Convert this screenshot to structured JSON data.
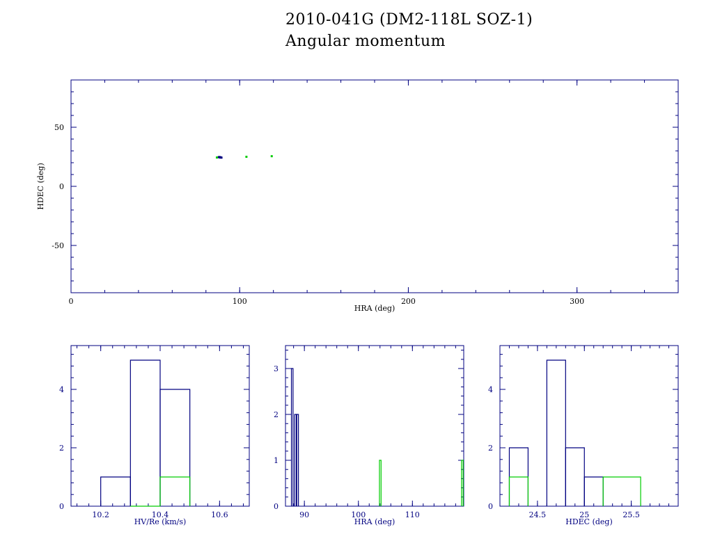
{
  "titles": {
    "line1": "2010-041G (DM2-118L SOZ-1)",
    "line2": "Angular momentum"
  },
  "colors": {
    "primary": "#000080",
    "secondary": "#00cc00",
    "axis": "#000080",
    "label": "#000000"
  },
  "chart_data": [
    {
      "type": "scatter",
      "xlabel": "HRA (deg)",
      "ylabel": "HDEC (deg)",
      "xlim": [
        0,
        360
      ],
      "ylim": [
        -90,
        90
      ],
      "xticks": [
        0,
        100,
        200,
        300
      ],
      "yticks": [
        -50,
        0,
        50
      ],
      "series": [
        {
          "color": "#000080",
          "points": [
            [
              87.6,
              24.7
            ],
            [
              88.1,
              24.6
            ],
            [
              88.4,
              24.4
            ],
            [
              88.8,
              24.5
            ],
            [
              89.2,
              24.3
            ],
            [
              88.0,
              24.8
            ],
            [
              88.6,
              24.5
            ]
          ]
        },
        {
          "color": "#00cc00",
          "points": [
            [
              86.5,
              24.4
            ],
            [
              104.0,
              25.0
            ],
            [
              119.0,
              25.5
            ]
          ]
        }
      ]
    },
    {
      "type": "histogram",
      "xlabel": "HV/Re (km/s)",
      "ylabel": "",
      "xlim": [
        10.1,
        10.7
      ],
      "ylim": [
        0,
        5.5
      ],
      "xticks": [
        "10.2",
        "10.4",
        "10.6"
      ],
      "yticks": [
        "0",
        "2",
        "4"
      ],
      "series": [
        {
          "color": "#000080",
          "bins": [
            [
              10.2,
              10.3,
              1
            ],
            [
              10.3,
              10.4,
              5
            ],
            [
              10.4,
              10.5,
              4
            ]
          ]
        },
        {
          "color": "#00cc00",
          "bins": [
            [
              10.3,
              10.4,
              0
            ],
            [
              10.4,
              10.5,
              1
            ]
          ]
        }
      ]
    },
    {
      "type": "histogram",
      "xlabel": "HRA (deg)",
      "ylabel": "",
      "xlim": [
        86.5,
        119.5
      ],
      "ylim": [
        0,
        3.5
      ],
      "xticks": [
        "90",
        "100",
        "110"
      ],
      "yticks": [
        "0",
        "1",
        "2",
        "3"
      ],
      "series": [
        {
          "color": "#000080",
          "bins": [
            [
              87.6,
              87.9,
              3
            ],
            [
              88.2,
              88.5,
              2
            ],
            [
              88.6,
              88.9,
              2
            ]
          ]
        },
        {
          "color": "#00cc00",
          "bins": [
            [
              103.9,
              104.2,
              1
            ],
            [
              119.1,
              119.4,
              1
            ]
          ]
        }
      ]
    },
    {
      "type": "histogram",
      "xlabel": "HDEC (deg)",
      "ylabel": "",
      "xlim": [
        24.1,
        26.0
      ],
      "ylim": [
        0,
        5.5
      ],
      "xticks": [
        "24.5",
        "25",
        "25.5"
      ],
      "yticks": [
        "0",
        "2",
        "4"
      ],
      "series": [
        {
          "color": "#000080",
          "bins": [
            [
              24.2,
              24.4,
              2
            ],
            [
              24.6,
              24.8,
              5
            ],
            [
              24.8,
              25.0,
              2
            ],
            [
              25.0,
              25.2,
              1
            ]
          ]
        },
        {
          "color": "#00cc00",
          "bins": [
            [
              24.2,
              24.4,
              1
            ],
            [
              25.2,
              25.6,
              1
            ]
          ]
        }
      ]
    }
  ]
}
